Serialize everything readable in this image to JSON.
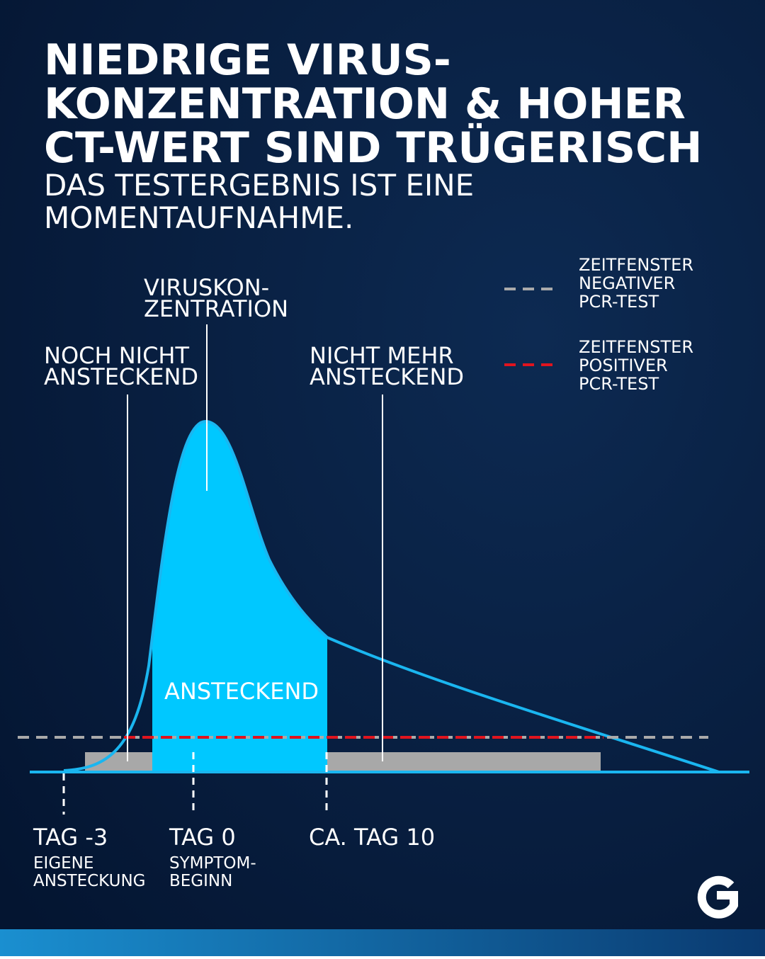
{
  "title": {
    "lines": [
      "NIEDRIGE VIRUS-",
      "KONZENTRATION & HOHER",
      "CT-WERT SIND TRÜGERISCH"
    ]
  },
  "subtitle": {
    "lines": [
      "DAS TESTERGEBNIS IST EINE",
      "MOMENTAUFNAHME."
    ]
  },
  "annotations": [
    {
      "lines": [
        "VIRUSKON-",
        "ZENTRATION"
      ]
    },
    {
      "lines": [
        "NOCH NICHT",
        "ANSTECKEND"
      ]
    },
    {
      "lines": [
        "NICHT MEHR",
        "ANSTECKEND"
      ]
    }
  ],
  "area_label": "ANSTECKEND",
  "legend": [
    {
      "lines": [
        "ZEITFENSTER",
        "NEGATIVER",
        "PCR-TEST"
      ]
    },
    {
      "lines": [
        "ZEITFENSTER",
        "POSITIVER",
        "PCR-TEST"
      ]
    }
  ],
  "days": [
    {
      "label": "TAG -3",
      "note": [
        "EIGENE",
        "ANSTECKUNG"
      ]
    },
    {
      "label": "TAG 0",
      "note": [
        "SYMPTOM-",
        "BEGINN"
      ]
    },
    {
      "label": "CA. TAG 10"
    }
  ]
}
